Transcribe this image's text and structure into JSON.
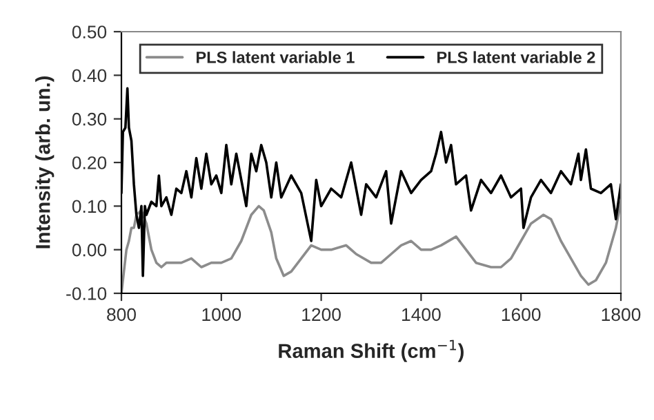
{
  "chart_data": {
    "type": "line",
    "xlabel": "Raman Shift (cm$^{−1}$)",
    "ylabel": "Intensity (arb. un.)",
    "xlim": [
      800,
      1800
    ],
    "xticks": [
      800,
      1000,
      1200,
      1400,
      1600,
      1800
    ],
    "ylim": [
      -0.1,
      0.5
    ],
    "yticks": [
      {
        "value": -0.1,
        "label": "-0.10"
      },
      {
        "value": 0,
        "label": "0.00"
      },
      {
        "value": 0.1,
        "label": "0.10"
      },
      {
        "value": 0.2,
        "label": "0.20"
      },
      {
        "value": 0.3,
        "label": "0.30"
      },
      {
        "value": 0.4,
        "label": "0.40"
      },
      {
        "value": 0.5,
        "label": "0.50"
      }
    ],
    "grid": false,
    "legend": "top",
    "marker": "none",
    "line_style": "solid",
    "series": [
      {
        "name": "PLS latent variable 1",
        "color": "#8c8c8c",
        "x": [
          800,
          805,
          810,
          815,
          820,
          825,
          830,
          840,
          850,
          860,
          870,
          880,
          890,
          900,
          920,
          940,
          960,
          980,
          1000,
          1020,
          1040,
          1060,
          1075,
          1085,
          1100,
          1110,
          1125,
          1140,
          1160,
          1180,
          1200,
          1220,
          1250,
          1270,
          1300,
          1320,
          1340,
          1360,
          1380,
          1400,
          1420,
          1440,
          1470,
          1490,
          1510,
          1540,
          1560,
          1580,
          1600,
          1620,
          1645,
          1660,
          1680,
          1700,
          1720,
          1735,
          1750,
          1770,
          1790,
          1800
        ],
        "values": [
          -0.1,
          -0.05,
          0.0,
          0.02,
          0.05,
          0.05,
          0.08,
          0.09,
          0.06,
          0.0,
          -0.03,
          -0.04,
          -0.03,
          -0.03,
          -0.03,
          -0.02,
          -0.04,
          -0.03,
          -0.03,
          -0.02,
          0.02,
          0.08,
          0.1,
          0.09,
          0.04,
          -0.02,
          -0.06,
          -0.05,
          -0.02,
          0.01,
          0.0,
          0.0,
          0.01,
          -0.01,
          -0.03,
          -0.03,
          -0.01,
          0.01,
          0.02,
          0.0,
          0.0,
          0.01,
          0.03,
          0.0,
          -0.03,
          -0.04,
          -0.04,
          -0.02,
          0.02,
          0.06,
          0.08,
          0.07,
          0.02,
          -0.02,
          -0.06,
          -0.08,
          -0.07,
          -0.03,
          0.05,
          0.11
        ]
      },
      {
        "name": "PLS latent variable 2",
        "color": "#000000",
        "x": [
          800,
          803,
          808,
          812,
          815,
          820,
          825,
          830,
          835,
          840,
          843,
          847,
          850,
          860,
          870,
          875,
          880,
          890,
          900,
          910,
          920,
          930,
          940,
          950,
          960,
          970,
          980,
          990,
          1000,
          1010,
          1020,
          1030,
          1040,
          1050,
          1060,
          1070,
          1080,
          1090,
          1100,
          1110,
          1120,
          1140,
          1160,
          1180,
          1190,
          1200,
          1220,
          1240,
          1260,
          1280,
          1290,
          1310,
          1330,
          1340,
          1360,
          1380,
          1400,
          1420,
          1430,
          1440,
          1450,
          1460,
          1470,
          1490,
          1500,
          1520,
          1540,
          1560,
          1580,
          1600,
          1605,
          1620,
          1640,
          1660,
          1680,
          1700,
          1715,
          1720,
          1730,
          1740,
          1760,
          1780,
          1790,
          1800
        ],
        "values": [
          0.13,
          0.27,
          0.28,
          0.37,
          0.28,
          0.25,
          0.15,
          0.08,
          0.05,
          0.1,
          -0.06,
          0.1,
          0.08,
          0.11,
          0.1,
          0.17,
          0.1,
          0.12,
          0.08,
          0.14,
          0.13,
          0.18,
          0.12,
          0.21,
          0.14,
          0.22,
          0.15,
          0.17,
          0.13,
          0.24,
          0.15,
          0.22,
          0.16,
          0.1,
          0.22,
          0.18,
          0.24,
          0.2,
          0.12,
          0.2,
          0.12,
          0.17,
          0.13,
          0.02,
          0.16,
          0.1,
          0.14,
          0.12,
          0.2,
          0.08,
          0.15,
          0.12,
          0.18,
          0.06,
          0.18,
          0.13,
          0.16,
          0.18,
          0.22,
          0.27,
          0.2,
          0.24,
          0.15,
          0.17,
          0.09,
          0.16,
          0.13,
          0.17,
          0.12,
          0.14,
          0.05,
          0.12,
          0.16,
          0.13,
          0.18,
          0.15,
          0.22,
          0.16,
          0.23,
          0.14,
          0.13,
          0.15,
          0.07,
          0.15
        ]
      }
    ]
  }
}
